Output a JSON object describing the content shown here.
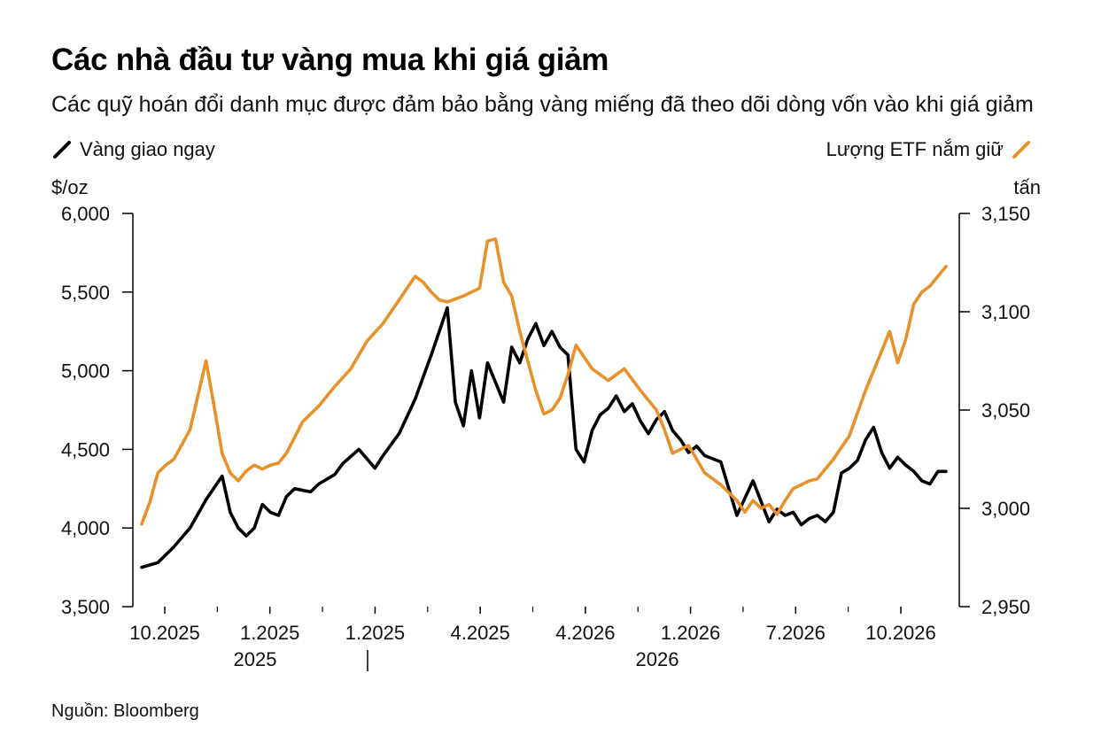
{
  "title": "Các nhà đầu tư vàng mua khi giá giảm",
  "subtitle": "Các quỹ hoán đổi danh mục được đảm bảo bằng vàng miếng đã theo dõi dòng vốn vào khi giá giảm",
  "source": "Nguồn: Bloomberg",
  "colors": {
    "spot": "#000000",
    "etf": "#e8912a"
  },
  "chart_data": {
    "type": "line",
    "legend": {
      "left": "Vàng giao ngay",
      "right": "Lượng ETF nắm giữ"
    },
    "y_left": {
      "label": "$/oz",
      "range": [
        3500,
        6000
      ],
      "ticks": [
        "3,500",
        "4,000",
        "4,500",
        "5,000",
        "5,500",
        "6,000"
      ]
    },
    "y_right": {
      "label": "tấn",
      "range": [
        2950,
        3150
      ],
      "ticks": [
        "2,950",
        "3,000",
        "3,050",
        "3,100",
        "3,150"
      ]
    },
    "x_ticks": [
      "10.2025",
      "1.2025",
      "1.2025",
      "4.2025",
      "4.2026",
      "1.2026",
      "7.2026",
      "10.2026"
    ],
    "x_years": [
      "2025",
      "2026"
    ],
    "x_range": [
      0,
      100
    ],
    "series": [
      {
        "name": "Vàng giao ngay",
        "axis": "left",
        "x": [
          0,
          2,
          4,
          6,
          8,
          10,
          11,
          12,
          13,
          14,
          15,
          16,
          17,
          18,
          19,
          21,
          22,
          24,
          25,
          27,
          29,
          30,
          32,
          34,
          36,
          38,
          39,
          40,
          41,
          42,
          43,
          45,
          46,
          47,
          48,
          49,
          50,
          51,
          52,
          53,
          54,
          55,
          56,
          57,
          58,
          59,
          60,
          61,
          62,
          63,
          64,
          65,
          66,
          67,
          68,
          69,
          70,
          72,
          74,
          76,
          78,
          79,
          80,
          81,
          82,
          83,
          84,
          85,
          86,
          87,
          88,
          89,
          90,
          91,
          92,
          93,
          94,
          95,
          96,
          97,
          98,
          99,
          100
        ],
        "values": [
          3750,
          3780,
          3880,
          4000,
          4180,
          4330,
          4100,
          4000,
          3950,
          4000,
          4150,
          4100,
          4080,
          4200,
          4250,
          4230,
          4280,
          4340,
          4410,
          4500,
          4380,
          4460,
          4600,
          4820,
          5100,
          5400,
          4800,
          4650,
          5000,
          4700,
          5050,
          4800,
          5150,
          5050,
          5200,
          5300,
          5160,
          5250,
          5150,
          5100,
          4500,
          4420,
          4620,
          4720,
          4760,
          4840,
          4740,
          4790,
          4680,
          4600,
          4690,
          4740,
          4620,
          4560,
          4480,
          4520,
          4460,
          4420,
          4080,
          4300,
          4040,
          4120,
          4080,
          4100,
          4020,
          4060,
          4080,
          4040,
          4100,
          4350,
          4380,
          4430,
          4560,
          4640,
          4480,
          4380,
          4450,
          4400,
          4360,
          4300,
          4280,
          4360,
          4360
        ]
      },
      {
        "name": "Lượng ETF nắm giữ",
        "axis": "right",
        "x": [
          0,
          1,
          2,
          3,
          4,
          6,
          8,
          9,
          10,
          11,
          12,
          13,
          14,
          15,
          16,
          17,
          18,
          19,
          20,
          22,
          24,
          26,
          28,
          30,
          32,
          34,
          35,
          36,
          37,
          38,
          40,
          41,
          42,
          43,
          44,
          45,
          46,
          47,
          48,
          49,
          50,
          51,
          52,
          53,
          54,
          55,
          56,
          57,
          58,
          60,
          62,
          64,
          65,
          66,
          68,
          70,
          72,
          74,
          75,
          76,
          77,
          78,
          79,
          80,
          81,
          82,
          83,
          84,
          86,
          88,
          90,
          92,
          93,
          94,
          95,
          96,
          97,
          98,
          99,
          100
        ],
        "values": [
          2992,
          3003,
          3018,
          3022,
          3025,
          3040,
          3075,
          3052,
          3028,
          3018,
          3014,
          3019,
          3022,
          3020,
          3022,
          3023,
          3028,
          3036,
          3044,
          3052,
          3062,
          3071,
          3085,
          3094,
          3106,
          3118,
          3115,
          3110,
          3106,
          3105,
          3108,
          3110,
          3112,
          3136,
          3137,
          3115,
          3108,
          3090,
          3075,
          3060,
          3048,
          3050,
          3056,
          3068,
          3083,
          3077,
          3071,
          3068,
          3065,
          3071,
          3060,
          3050,
          3040,
          3028,
          3032,
          3018,
          3012,
          3004,
          2998,
          3004,
          3000,
          3002,
          2997,
          3004,
          3010,
          3012,
          3014,
          3015,
          3025,
          3037,
          3060,
          3080,
          3090,
          3074,
          3086,
          3104,
          3110,
          3113,
          3118,
          3123
        ]
      }
    ]
  }
}
